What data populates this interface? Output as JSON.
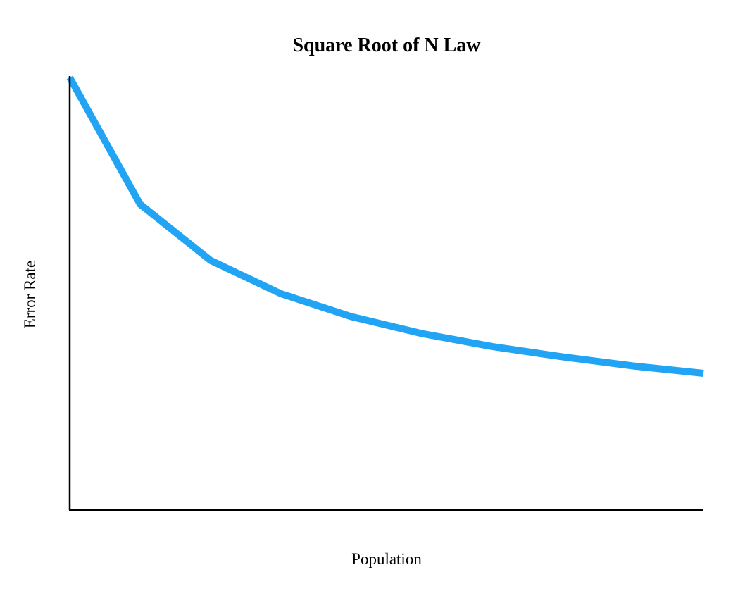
{
  "chart_data": {
    "type": "line",
    "title": "Square Root of N Law",
    "xlabel": "Population",
    "ylabel": "Error Rate",
    "x": [
      1,
      2,
      3,
      4,
      5,
      6,
      7,
      8,
      9,
      10
    ],
    "series": [
      {
        "values": [
          1.0,
          0.707,
          0.577,
          0.5,
          0.447,
          0.408,
          0.378,
          0.354,
          0.333,
          0.316
        ],
        "color": "#22a4f5"
      }
    ],
    "xlim": [
      1,
      10
    ],
    "ylim": [
      0,
      1
    ],
    "grid": false,
    "legend": "none",
    "axis_color": "#000000"
  }
}
